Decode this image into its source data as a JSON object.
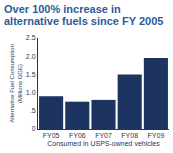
{
  "chart_data": {
    "type": "bar",
    "title": "Over 100% increase in alternative fuels since FY 2005",
    "x_label": "Consumed in USPS-owned vehicles",
    "y_label": "Alternative Fuel Consumption (Millions GGE)",
    "categories": [
      "FY05",
      "FY06",
      "FY07",
      "FY08",
      "FY09"
    ],
    "values": [
      0.9,
      0.75,
      0.8,
      1.5,
      1.95
    ],
    "color": "#1d3461",
    "ylim": [
      0,
      2.5
    ],
    "yticks": [
      0,
      {
        "value": 0.5,
        "label": ".5"
      },
      {
        "value": 1,
        "label": "1.0"
      },
      1.5,
      {
        "value": 2,
        "label": "2.0"
      },
      2.5
    ],
    "grid": false
  }
}
